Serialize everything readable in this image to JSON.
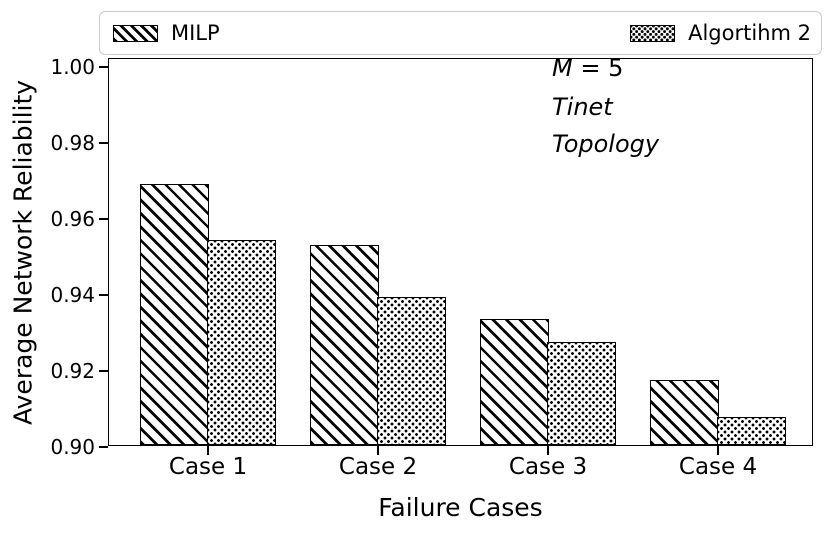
{
  "figure": {
    "background": "#ffffff",
    "foreground": "#000000",
    "legend_border_color": "#cccccc"
  },
  "legend": {
    "entries": [
      {
        "label": "MILP",
        "pattern": "diagonal-hatch"
      },
      {
        "label": "Algortihm 2",
        "pattern": "dots"
      }
    ]
  },
  "annotation": {
    "m_var": "M",
    "m_rest": " = 5",
    "line2": "Tinet",
    "line3": "Topology"
  },
  "chart_data": {
    "type": "bar",
    "title": "",
    "xlabel": "Failure Cases",
    "ylabel": "Average Network Reliability",
    "categories": [
      "Case 1",
      "Case 2",
      "Case 3",
      "Case 4"
    ],
    "series": [
      {
        "name": "MILP",
        "pattern": "diagonal-hatch",
        "values": [
          0.9685,
          0.9527,
          0.933,
          0.917
        ]
      },
      {
        "name": "Algortihm 2",
        "pattern": "dots",
        "values": [
          0.954,
          0.939,
          0.927,
          0.9073
        ]
      }
    ],
    "ylim": [
      0.9,
      1.002
    ],
    "yticks": [
      "1.00",
      "0.98",
      "0.96",
      "0.94",
      "0.92",
      "0.90"
    ],
    "ytick_values": [
      1.0,
      0.98,
      0.96,
      0.94,
      0.92,
      0.9
    ],
    "grid": false,
    "legend_position": "top",
    "bar_fill": "#ffffff",
    "bar_edge": "#000000"
  }
}
